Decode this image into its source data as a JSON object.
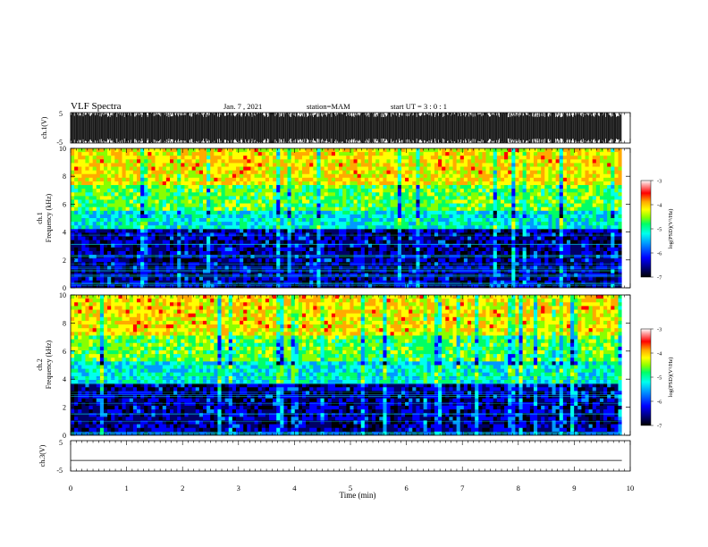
{
  "header": {
    "title": "VLF Spectra",
    "date": "Jan. 7 , 2021",
    "station": "station=MAM",
    "start": "start UT = 3 : 0 : 1"
  },
  "colors": {
    "scale": [
      "#ffffff",
      "#ff9999",
      "#ff0000",
      "#ffaa00",
      "#ffff00",
      "#88ff00",
      "#00ff66",
      "#00ffee",
      "#0099ff",
      "#0000ff",
      "#000066",
      "#000000"
    ]
  },
  "chart_data": [
    {
      "type": "line",
      "id": "ch1-waveform",
      "ylabel": "ch.1(V)",
      "yticks": [
        "5",
        "-5"
      ],
      "ylim": [
        -5,
        5
      ],
      "x": [
        0,
        9.85
      ],
      "description_values": "dense broadband noise saturating between about -5 and 5 V"
    },
    {
      "type": "heatmap",
      "id": "ch1-spectrogram",
      "ylabel": "ch.1\nFrequency (kHz)",
      "ylabel_lines": [
        "ch.1",
        "Frequency (kHz)"
      ],
      "yticks": [
        "0",
        "2",
        "4",
        "6",
        "8",
        "10"
      ],
      "ylim": [
        0,
        10
      ],
      "xlim": [
        0,
        9.85
      ],
      "colorbar": {
        "label": "log(PSD)(V²/Hz)",
        "ticks": [
          "-3",
          "-4",
          "-5",
          "-6",
          "-7"
        ],
        "range": [
          -7,
          -3
        ]
      },
      "bands": [
        {
          "freq_khz": [
            0,
            4.3
          ],
          "logpsd": -6.3
        },
        {
          "freq_khz": [
            4.3,
            5.5
          ],
          "logpsd": -5.2
        },
        {
          "freq_khz": [
            5.5,
            7.5
          ],
          "logpsd": -4.6
        },
        {
          "freq_khz": [
            7.5,
            10
          ],
          "logpsd": -3.9
        }
      ]
    },
    {
      "type": "heatmap",
      "id": "ch2-spectrogram",
      "ylabel_lines": [
        "ch.2",
        "Frequency (kHz)"
      ],
      "yticks": [
        "0",
        "2",
        "4",
        "6",
        "8",
        "10"
      ],
      "ylim": [
        0,
        10
      ],
      "xlim": [
        0,
        9.85
      ],
      "colorbar": {
        "label": "log(PSD)(V²/Hz)",
        "ticks": [
          "-3",
          "-4",
          "-5",
          "-6",
          "-7"
        ],
        "range": [
          -7,
          -3
        ]
      },
      "bands": [
        {
          "freq_khz": [
            0,
            3.8
          ],
          "logpsd": -6.3
        },
        {
          "freq_khz": [
            3.8,
            5.2
          ],
          "logpsd": -5.2
        },
        {
          "freq_khz": [
            5.2,
            7.2
          ],
          "logpsd": -4.6
        },
        {
          "freq_khz": [
            7.2,
            10
          ],
          "logpsd": -3.9
        }
      ]
    },
    {
      "type": "line",
      "id": "ch3-waveform",
      "ylabel": "ch.3(V)",
      "yticks": [
        "5",
        "-5"
      ],
      "ylim": [
        -5,
        5
      ],
      "x": [
        0,
        9.85
      ],
      "y": [
        -1.5,
        -1.5
      ]
    }
  ],
  "xaxis": {
    "label": "Time (min)",
    "ticks": [
      "0",
      "1",
      "2",
      "3",
      "4",
      "5",
      "6",
      "7",
      "8",
      "9",
      "10"
    ],
    "xlim": [
      0,
      10
    ]
  }
}
